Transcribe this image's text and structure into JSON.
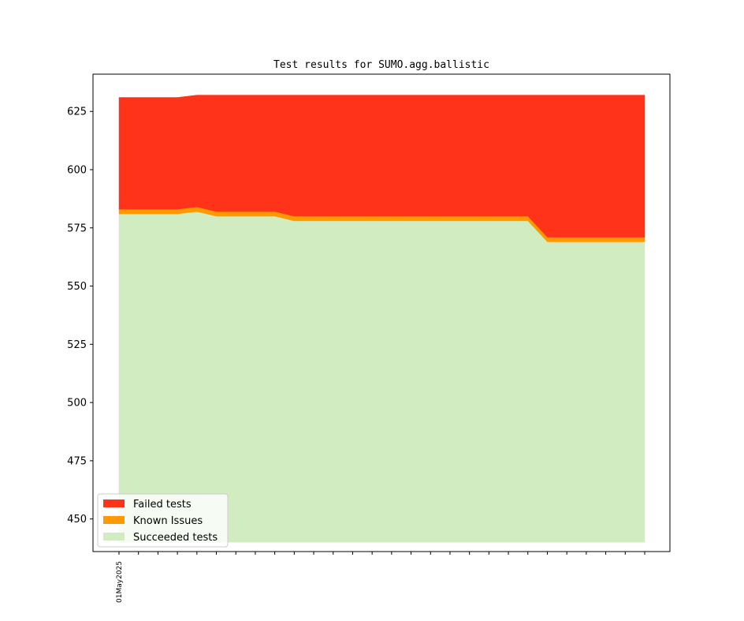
{
  "chart_data": {
    "type": "area",
    "title": "Test results for SUMO.agg.ballistic",
    "xlabel": "",
    "ylabel": "",
    "ylim": [
      436,
      641
    ],
    "yticks": [
      450,
      475,
      500,
      525,
      550,
      575,
      600,
      625
    ],
    "x_tick_count": 28,
    "x_tick_labels": [
      {
        "index": 0,
        "label": "01May2025"
      }
    ],
    "x": [
      0,
      1,
      2,
      3,
      4,
      5,
      6,
      7,
      8,
      9,
      10,
      11,
      12,
      13,
      14,
      15,
      16,
      17,
      18,
      19,
      20,
      21,
      22,
      23,
      24,
      25,
      26,
      27
    ],
    "series": [
      {
        "name": "Succeeded tests",
        "color": "#d0ecc0",
        "values": [
          581,
          581,
          581,
          581,
          582,
          580,
          580,
          580,
          580,
          578,
          578,
          578,
          578,
          578,
          578,
          578,
          578,
          578,
          578,
          578,
          578,
          578,
          569,
          569,
          569,
          569,
          569,
          569
        ]
      },
      {
        "name": "Known Issues",
        "color": "#ff9900",
        "values": [
          2,
          2,
          2,
          2,
          2,
          2,
          2,
          2,
          2,
          2,
          2,
          2,
          2,
          2,
          2,
          2,
          2,
          2,
          2,
          2,
          2,
          2,
          2,
          2,
          2,
          2,
          2,
          2
        ]
      },
      {
        "name": "Failed tests",
        "color": "#ff331a",
        "values": [
          48,
          48,
          48,
          48,
          48,
          50,
          50,
          50,
          50,
          52,
          52,
          52,
          52,
          52,
          52,
          52,
          52,
          52,
          52,
          52,
          52,
          52,
          61,
          61,
          61,
          61,
          61,
          61
        ]
      }
    ],
    "baseline": 440,
    "grid": false,
    "legend": {
      "position": "lower-left",
      "entries": [
        {
          "label": "Failed tests",
          "color": "#ff331a"
        },
        {
          "label": "Known Issues",
          "color": "#ff9900"
        },
        {
          "label": "Succeeded tests",
          "color": "#d0ecc0"
        }
      ]
    }
  }
}
